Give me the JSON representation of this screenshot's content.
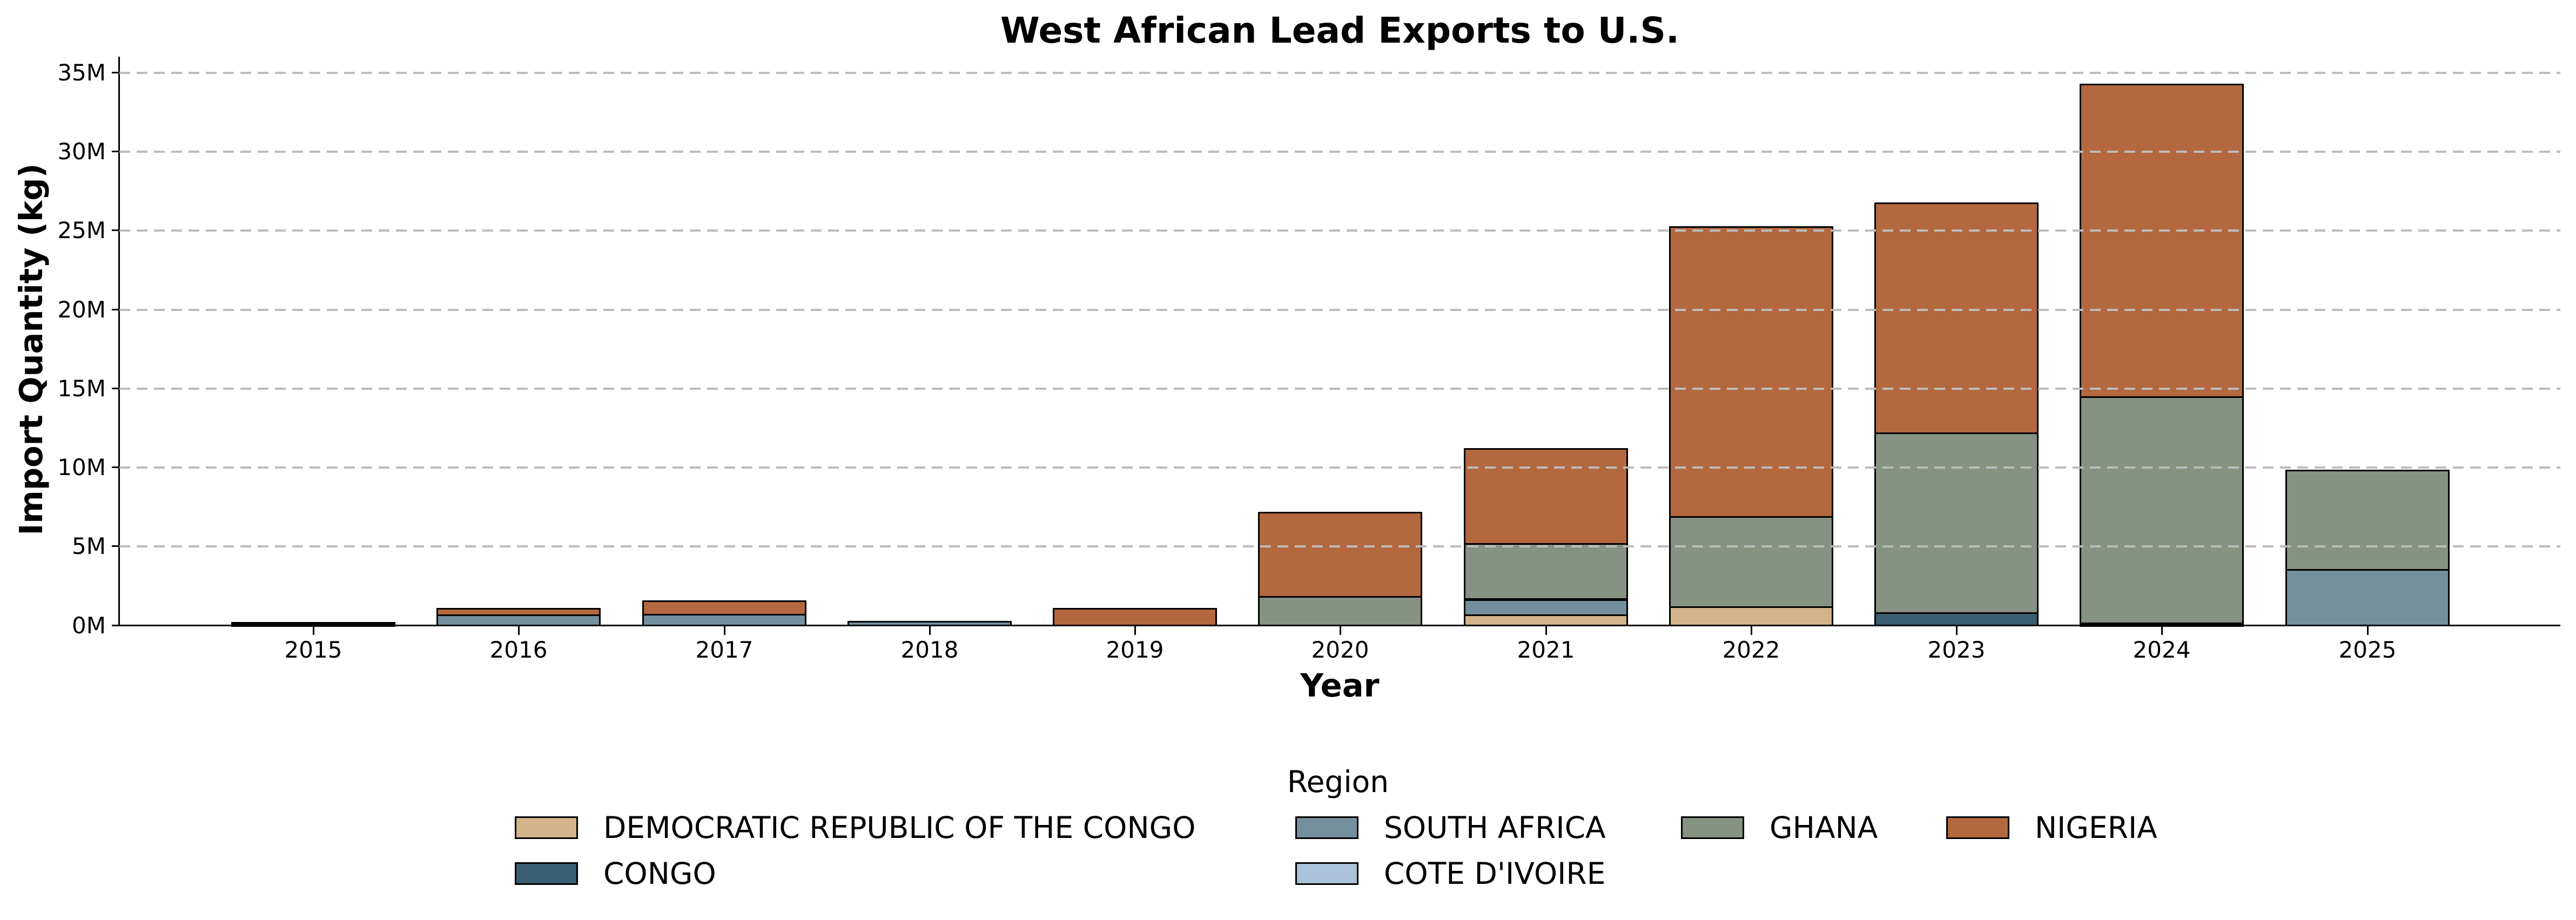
{
  "chart_data": {
    "type": "bar",
    "stacked": true,
    "title": "West African Lead Exports to U.S.",
    "xlabel": "Year",
    "ylabel": "Import Quantity (kg)",
    "categories": [
      "2015",
      "2016",
      "2017",
      "2018",
      "2019",
      "2020",
      "2021",
      "2022",
      "2023",
      "2024",
      "2025"
    ],
    "values_unit": "million kg",
    "series": [
      {
        "name": "DEMOCRATIC REPUBLIC OF THE CONGO",
        "color": "#d3b389",
        "values": [
          0,
          0,
          0,
          0,
          0,
          0,
          0.64,
          1.13,
          0,
          0,
          0
        ]
      },
      {
        "name": "CONGO",
        "color": "#3a5e72",
        "values": [
          0.15,
          0,
          0,
          0,
          0,
          0,
          0,
          0,
          0.78,
          0.12,
          0
        ]
      },
      {
        "name": "SOUTH AFRICA",
        "color": "#74909f",
        "values": [
          0,
          0.62,
          0.65,
          0.22,
          0,
          0,
          1.0,
          0,
          0,
          0,
          3.49
        ]
      },
      {
        "name": "COTE D'IVOIRE",
        "color": "#aac3da",
        "values": [
          0,
          0,
          0,
          0,
          0,
          0,
          0.02,
          0,
          0,
          0,
          0
        ]
      },
      {
        "name": "GHANA",
        "color": "#869282",
        "values": [
          0,
          0,
          0,
          0,
          0,
          1.81,
          3.49,
          5.73,
          11.37,
          14.31,
          6.3
        ]
      },
      {
        "name": "NIGERIA",
        "color": "#b4683f",
        "values": [
          0,
          0.41,
          0.86,
          0,
          1.04,
          5.33,
          6.02,
          18.34,
          14.58,
          19.81,
          0
        ]
      }
    ],
    "totals": [
      0.15,
      1.03,
      1.51,
      0.22,
      1.04,
      7.14,
      11.17,
      25.2,
      26.73,
      34.24,
      9.79
    ],
    "yticks": [
      0,
      5,
      10,
      15,
      20,
      25,
      30,
      35
    ],
    "yticklabels": [
      "0M",
      "5M",
      "10M",
      "15M",
      "20M",
      "25M",
      "30M",
      "35M"
    ],
    "ylim": [
      0,
      36
    ],
    "grid": "horizontal dashed, drawn above bars",
    "bar_edge_color": "#000000",
    "legend": {
      "title": "Region",
      "position": "below plot, two rows, four columns",
      "columns": [
        [
          0,
          1
        ],
        [
          2,
          3
        ],
        [
          4
        ],
        [
          5
        ]
      ]
    }
  }
}
